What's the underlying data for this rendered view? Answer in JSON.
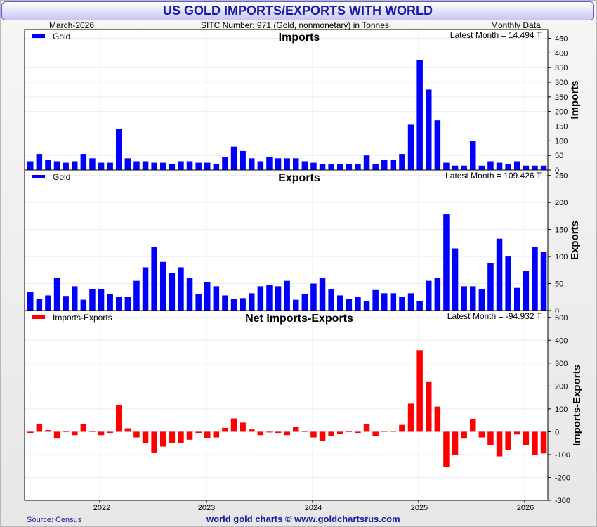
{
  "page": {
    "title": "US GOLD IMPORTS/EXPORTS WITH WORLD",
    "date": "March-2026",
    "subtitle": "SITC Number: 971 (Gold, nonmonetary) in Tonnes",
    "frequency": "Monthly Data",
    "source": "Source: Census",
    "credit": "world gold charts © www.goldchartsrus.com"
  },
  "colors": {
    "title": "#1a1aa8",
    "imports": "#0000ff",
    "exports": "#0000ff",
    "net": "#ff0000",
    "footer": "#1a1aa8"
  },
  "chart_data": [
    {
      "type": "bar",
      "title": "Imports",
      "ylabel": "Imports",
      "legend": "Gold",
      "legend_position": "top-left",
      "latest": "Latest Month = 14.494 T",
      "ylim": [
        0,
        480
      ],
      "yticks": [
        0,
        50,
        100,
        150,
        200,
        250,
        300,
        350,
        400,
        450
      ],
      "grid": true,
      "start_month": "2021-06",
      "x_tick_labels": [
        "2022",
        "2023",
        "2024",
        "2025",
        "2026"
      ],
      "values": [
        30,
        55,
        35,
        30,
        25,
        30,
        55,
        40,
        25,
        25,
        140,
        40,
        30,
        30,
        25,
        25,
        20,
        30,
        30,
        25,
        25,
        20,
        45,
        80,
        65,
        40,
        30,
        45,
        40,
        40,
        40,
        30,
        25,
        20,
        20,
        20,
        20,
        20,
        50,
        20,
        35,
        35,
        55,
        155,
        375,
        275,
        170,
        25,
        15,
        15,
        100,
        15,
        30,
        25,
        20,
        30,
        15,
        15,
        15
      ]
    },
    {
      "type": "bar",
      "title": "Exports",
      "ylabel": "Exports",
      "legend": "Gold",
      "legend_position": "top-left",
      "latest": "Latest Month = 109.426 T",
      "ylim": [
        0,
        260
      ],
      "yticks": [
        0,
        50,
        100,
        150,
        200,
        250
      ],
      "grid": true,
      "start_month": "2021-06",
      "x_tick_labels": [
        "2022",
        "2023",
        "2024",
        "2025",
        "2026"
      ],
      "values": [
        35,
        22,
        28,
        60,
        27,
        45,
        20,
        40,
        40,
        30,
        25,
        25,
        55,
        80,
        118,
        90,
        70,
        80,
        60,
        30,
        52,
        45,
        28,
        22,
        23,
        32,
        45,
        48,
        45,
        55,
        20,
        30,
        50,
        60,
        40,
        28,
        22,
        25,
        18,
        38,
        32,
        32,
        25,
        32,
        18,
        55,
        60,
        178,
        115,
        45,
        45,
        40,
        88,
        133,
        100,
        42,
        73,
        118,
        109
      ]
    },
    {
      "type": "bar",
      "title": "Net Imports-Exports",
      "ylabel": "Imports-Exports",
      "legend": "Imports-Exports",
      "legend_position": "top-left",
      "latest": "Latest Month = -94.932 T",
      "ylim": [
        -300,
        530
      ],
      "yticks": [
        -300,
        -200,
        -100,
        0,
        100,
        200,
        300,
        400,
        500
      ],
      "grid": true,
      "start_month": "2021-06",
      "x_tick_labels": [
        "2022",
        "2023",
        "2024",
        "2025",
        "2026"
      ],
      "values": [
        -5,
        33,
        7,
        -30,
        -2,
        -15,
        35,
        0,
        -15,
        -5,
        115,
        15,
        -25,
        -50,
        -93,
        -65,
        -50,
        -50,
        -35,
        -5,
        -27,
        -25,
        17,
        58,
        40,
        10,
        -15,
        -3,
        -5,
        -15,
        20,
        0,
        -25,
        -40,
        -20,
        -8,
        -2,
        -5,
        32,
        -18,
        3,
        3,
        30,
        123,
        357,
        220,
        110,
        -153,
        -100,
        -30,
        55,
        -25,
        -58,
        -108,
        -80,
        -12,
        -58,
        -103,
        -95
      ]
    }
  ]
}
